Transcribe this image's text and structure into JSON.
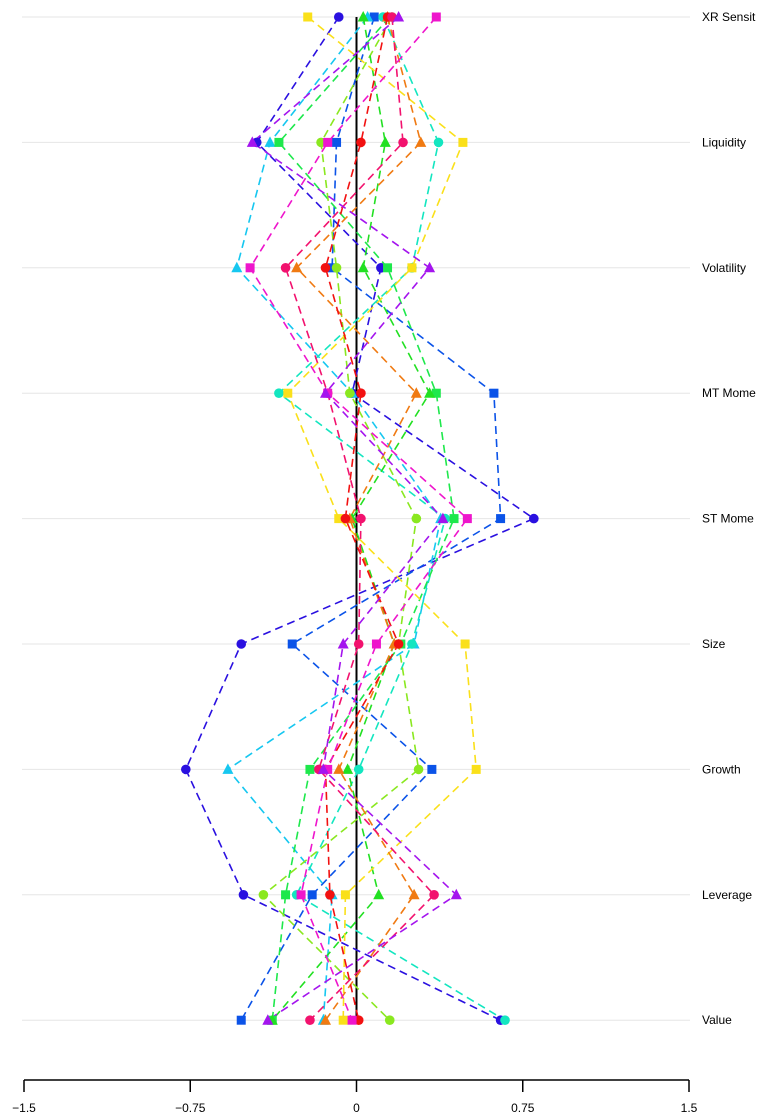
{
  "chart_data": {
    "type": "line",
    "title": "",
    "xlabel": "",
    "ylabel": "",
    "orientation": "horizontal-values",
    "xlim": [
      -1.5,
      1.5
    ],
    "x_ticks": [
      -1.5,
      -0.75,
      0,
      0.75,
      1.5
    ],
    "x_tick_labels": [
      "−1.5",
      "−0.75",
      "0",
      "0.75",
      "1.5"
    ],
    "factors": [
      "XR Sensit",
      "Liquidity",
      "Volatility",
      "MT Mome",
      "ST Mome",
      "Size",
      "Growth",
      "Leverage",
      "Value"
    ],
    "grid": true,
    "reference_line_x": 0,
    "series": [
      {
        "color": "#2a10e0",
        "marker": "circle",
        "values": [
          -0.08,
          -0.45,
          0.11,
          -0.02,
          0.8,
          -0.52,
          -0.77,
          -0.51,
          0.65
        ]
      },
      {
        "color": "#0b53e8",
        "marker": "square",
        "values": [
          0.08,
          -0.09,
          -0.11,
          0.62,
          0.65,
          -0.29,
          0.34,
          -0.2,
          -0.52
        ]
      },
      {
        "color": "#16c7f0",
        "marker": "triangle",
        "values": [
          0.05,
          -0.39,
          -0.54,
          -0.02,
          0.38,
          0.26,
          -0.58,
          -0.11,
          -0.15
        ]
      },
      {
        "color": "#13e6c0",
        "marker": "circle",
        "values": [
          0.12,
          0.37,
          0.25,
          -0.35,
          0.4,
          0.25,
          0.01,
          -0.27,
          0.67
        ]
      },
      {
        "color": "#1ee84c",
        "marker": "square",
        "values": [
          0.15,
          -0.35,
          0.14,
          0.36,
          0.44,
          0.2,
          -0.21,
          -0.32,
          -0.38
        ]
      },
      {
        "color": "#8ae81f",
        "marker": "circle",
        "values": [
          0.16,
          -0.16,
          -0.09,
          -0.03,
          0.27,
          0.19,
          0.28,
          -0.42,
          0.15
        ]
      },
      {
        "color": "#22e022",
        "marker": "triangle",
        "values": [
          0.03,
          0.13,
          0.03,
          0.33,
          -0.02,
          0.17,
          -0.04,
          0.1,
          -0.38
        ]
      },
      {
        "color": "#fae01a",
        "marker": "square",
        "values": [
          -0.22,
          0.48,
          0.25,
          -0.31,
          -0.08,
          0.49,
          0.54,
          -0.05,
          -0.06
        ]
      },
      {
        "color": "#f07a12",
        "marker": "triangle",
        "values": [
          0.14,
          0.29,
          -0.27,
          0.27,
          -0.03,
          0.17,
          -0.08,
          0.26,
          -0.14
        ]
      },
      {
        "color": "#f21111",
        "marker": "circle",
        "values": [
          0.14,
          0.02,
          -0.14,
          0.02,
          -0.05,
          0.19,
          -0.14,
          -0.12,
          0.01
        ]
      },
      {
        "color": "#f2126e",
        "marker": "circle",
        "values": [
          0.16,
          0.21,
          -0.32,
          -0.13,
          0.02,
          0.01,
          -0.17,
          0.35,
          -0.21
        ]
      },
      {
        "color": "#ee15cc",
        "marker": "square",
        "values": [
          0.36,
          -0.13,
          -0.48,
          -0.13,
          0.5,
          0.09,
          -0.13,
          -0.25,
          -0.02
        ]
      },
      {
        "color": "#a414ee",
        "marker": "triangle",
        "values": [
          0.19,
          -0.47,
          0.33,
          -0.14,
          0.39,
          -0.06,
          -0.15,
          0.45,
          -0.4
        ]
      }
    ]
  }
}
